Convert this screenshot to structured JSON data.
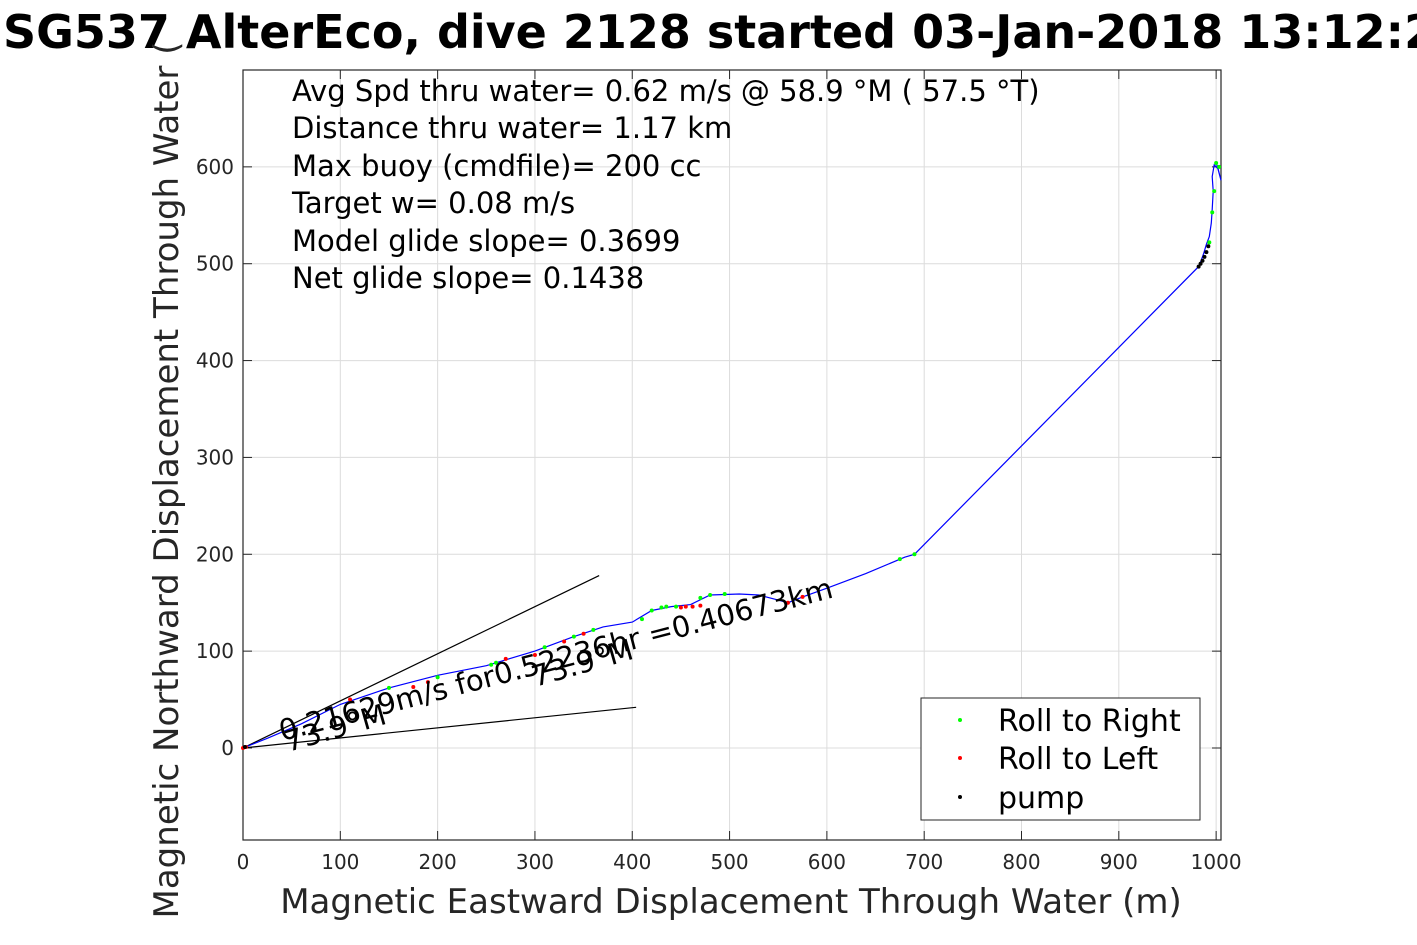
{
  "chart_data": {
    "type": "scatter",
    "title": "SG537 AlterEco, dive 2128 started 03-Jan-2018 13:12:2",
    "xlabel": "Magnetic Eastward Displacement Through Water (m)",
    "ylabel": "Magnetic Northward Displacement Through Water (",
    "xlim": [
      0,
      1005
    ],
    "ylim": [
      -95,
      700
    ],
    "x_ticks": [
      0,
      100,
      200,
      300,
      400,
      500,
      600,
      700,
      800,
      900,
      1000
    ],
    "y_ticks": [
      0,
      100,
      200,
      300,
      400,
      500,
      600
    ],
    "x_tick_labels": [
      "0",
      "100",
      "200",
      "300",
      "400",
      "500",
      "600",
      "700",
      "800",
      "900",
      "1000"
    ],
    "y_tick_labels": [
      "0",
      "100",
      "200",
      "300",
      "400",
      "500",
      "600"
    ],
    "grid": true,
    "legend_position": "bottom-right",
    "stats": [
      "Avg Spd thru water=  0.62 m/s @  58.9 °M ( 57.5 °T)",
      "Distance thru water=  1.17 km",
      "Max buoy (cmdfile)= 200 cc",
      "Target w= 0.08 m/s",
      "Model glide slope= 0.3699",
      "Net glide slope= 0.1438"
    ],
    "annotations": {
      "current": "0.21629m/s for0.52236hr =0.40673km",
      "heading_start": "73.9°M",
      "heading_mid": "73.9°M"
    },
    "track": {
      "name": "track",
      "color": "#0000ff",
      "x": [
        0,
        25,
        60,
        100,
        150,
        200,
        250,
        300,
        340,
        370,
        400,
        420,
        440,
        460,
        480,
        510,
        530,
        545,
        560,
        575,
        600,
        640,
        680,
        690,
        982,
        984,
        987,
        990,
        993,
        995,
        996,
        997,
        996,
        998,
        1002,
        1005,
        1000
      ],
      "y": [
        0,
        10,
        25,
        45,
        62,
        75,
        85,
        100,
        115,
        125,
        130,
        142,
        146,
        148,
        158,
        159,
        158,
        154,
        150,
        156,
        165,
        180,
        197,
        200,
        497,
        502,
        510,
        520,
        528,
        542,
        556,
        575,
        590,
        602,
        598,
        586,
        605
      ]
    },
    "rays": {
      "color": "#000000",
      "from": [
        0,
        0
      ],
      "to": [
        [
          366,
          178
        ],
        [
          404,
          42
        ]
      ]
    },
    "series": [
      {
        "name": "Roll to Right",
        "color": "#00ff00",
        "x": [
          150,
          200,
          255,
          260,
          310,
          340,
          360,
          410,
          420,
          430,
          435,
          445,
          470,
          480,
          495,
          675,
          690,
          993,
          996,
          998,
          1000,
          1003
        ],
        "y": [
          62,
          73,
          86,
          88,
          104,
          115,
          122,
          133,
          142,
          145,
          146,
          146,
          155,
          158,
          159,
          195,
          200,
          522,
          553,
          575,
          604,
          600
        ]
      },
      {
        "name": "Roll to Left",
        "color": "#ff0000",
        "x": [
          0,
          3,
          110,
          175,
          190,
          270,
          300,
          330,
          350,
          450,
          455,
          462,
          470,
          560,
          575
        ],
        "y": [
          0,
          1,
          50,
          63,
          68,
          92,
          96,
          110,
          118,
          145,
          146,
          146,
          147,
          150,
          156
        ]
      },
      {
        "name": "pump",
        "color": "#000000",
        "x": [
          2,
          982,
          984,
          986,
          988,
          990,
          992
        ],
        "y": [
          1,
          497,
          500,
          503,
          507,
          512,
          518
        ]
      }
    ]
  }
}
